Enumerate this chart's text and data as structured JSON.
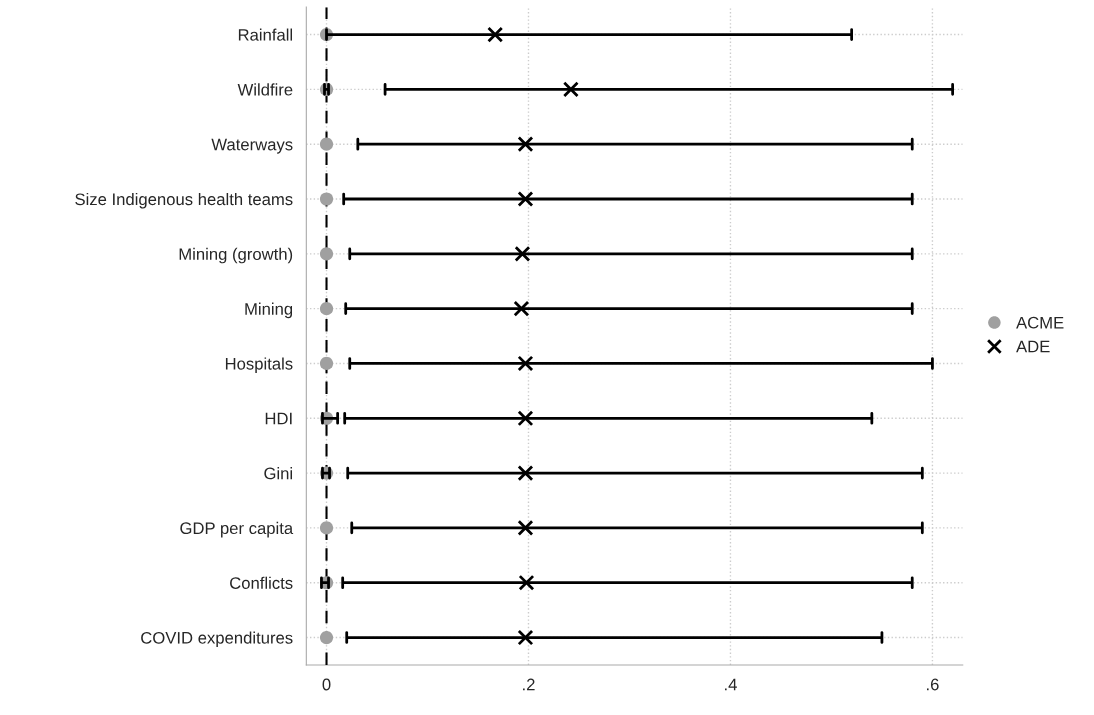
{
  "chart_data": {
    "type": "scatter",
    "orientation": "horizontal",
    "categories": [
      "Rainfall",
      "Wildfire",
      "Waterways",
      "Size Indigenous health teams",
      "Mining (growth)",
      "Mining",
      "Hospitals",
      "HDI",
      "Gini",
      "GDP per capita",
      "Conflicts",
      "COVID expenditures"
    ],
    "series": [
      {
        "name": "ACME",
        "color": "#a0a0a0",
        "marker": "circle",
        "values": [
          0,
          0,
          0,
          0,
          0,
          0,
          0,
          0,
          0,
          0,
          0,
          0
        ],
        "errors": [
          null,
          [
            -0.002,
            0.002
          ],
          null,
          null,
          null,
          null,
          null,
          [
            -0.004,
            0.011
          ],
          [
            -0.004,
            0.003
          ],
          null,
          [
            -0.005,
            0.002
          ],
          null
        ]
      },
      {
        "name": "ADE",
        "color": "#000000",
        "marker": "cross",
        "values": [
          0.167,
          0.242,
          0.197,
          0.197,
          0.194,
          0.193,
          0.197,
          0.197,
          0.197,
          0.197,
          0.198,
          0.197
        ],
        "errors": [
          [
            0.0,
            0.52
          ],
          [
            0.058,
            0.62
          ],
          [
            0.031,
            0.58
          ],
          [
            0.017,
            0.58
          ],
          [
            0.023,
            0.58
          ],
          [
            0.019,
            0.58
          ],
          [
            0.023,
            0.6
          ],
          [
            0.018,
            0.54
          ],
          [
            0.021,
            0.59
          ],
          [
            0.025,
            0.59
          ],
          [
            0.016,
            0.58
          ],
          [
            0.02,
            0.55
          ]
        ]
      }
    ],
    "xlim": [
      -0.02,
      0.63
    ],
    "xticks": [
      {
        "value": 0,
        "label": "0"
      },
      {
        "value": 0.2,
        "label": ".2"
      },
      {
        "value": 0.4,
        "label": ".4"
      },
      {
        "value": 0.6,
        "label": ".6"
      }
    ],
    "ref_lines": [
      {
        "axis": "x",
        "value": 0,
        "color": "#000000",
        "line_style": "dashed"
      }
    ],
    "grid": true,
    "legend": "right"
  }
}
